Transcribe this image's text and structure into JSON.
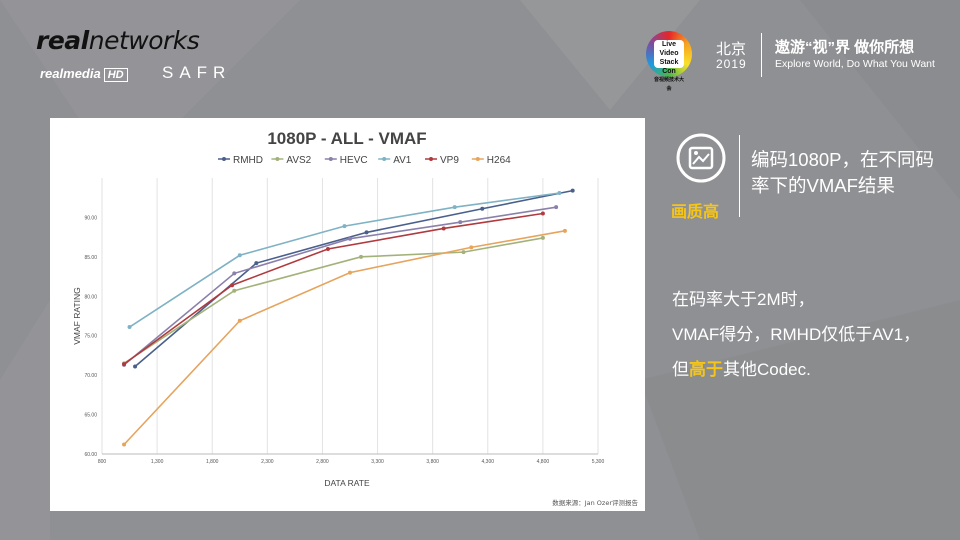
{
  "header": {
    "brand_left": {
      "real": "real",
      "networks": "networks",
      "realmedia": "realmedia",
      "hd": "HD",
      "safr": "SAFR"
    },
    "event": {
      "logo_text": [
        "Live Video",
        "Stack Con",
        "音视频技术大会"
      ],
      "city": "北京",
      "year": "2019",
      "slogan_cn": "遨游“视”界  做你所想",
      "slogan_en": "Explore World, Do What You Want"
    }
  },
  "callout": {
    "icon": "picture-quality-icon",
    "caption": "画质高",
    "title": "编码1080P，在不同码率下的VMAF结果"
  },
  "body": {
    "line1": "在码率大于2M时，",
    "line2": "VMAF得分，RMHD仅低于AV1，",
    "line3_pre": "但",
    "line3_hl": "高于",
    "line3_post": "其他Codec."
  },
  "colors": {
    "background": "#8f9093",
    "accent": "#f5c518"
  },
  "chart_data": {
    "type": "line",
    "title": "1080P - ALL - VMAF",
    "xlabel": "DATA RATE",
    "ylabel": "VMAF RATING",
    "source": "数据来源：Jan Ozer评测报告",
    "xlim": [
      800,
      5300
    ],
    "ylim": [
      60,
      95
    ],
    "xticks": [
      "800",
      "1,300",
      "1,800",
      "2,300",
      "2,800",
      "3,300",
      "3,800",
      "4,300",
      "4,800",
      "5,300"
    ],
    "yticks": [
      "60.00",
      "65.00",
      "70.00",
      "75.00",
      "80.00",
      "85.00",
      "90.00"
    ],
    "legend_position": "top",
    "series": [
      {
        "name": "RMHD",
        "color": "#4a5f8c",
        "points": [
          [
            1100,
            71.1
          ],
          [
            2200,
            84.2
          ],
          [
            3200,
            88.1
          ],
          [
            4250,
            91.1
          ],
          [
            5070,
            93.4
          ]
        ]
      },
      {
        "name": "AVS2",
        "color": "#a3b27a",
        "points": [
          [
            1000,
            71.5
          ],
          [
            2000,
            80.7
          ],
          [
            3150,
            85.0
          ],
          [
            4080,
            85.6
          ],
          [
            4800,
            87.4
          ]
        ]
      },
      {
        "name": "HEVC",
        "color": "#8a80ab",
        "points": [
          [
            1000,
            71.3
          ],
          [
            2000,
            82.9
          ],
          [
            3050,
            87.3
          ],
          [
            4050,
            89.4
          ],
          [
            4920,
            91.3
          ]
        ]
      },
      {
        "name": "AV1",
        "color": "#7fb2c4",
        "points": [
          [
            1050,
            76.1
          ],
          [
            2050,
            85.2
          ],
          [
            3000,
            88.9
          ],
          [
            4000,
            91.3
          ],
          [
            4950,
            93.1
          ]
        ]
      },
      {
        "name": "VP9",
        "color": "#b03a3e",
        "points": [
          [
            1000,
            71.4
          ],
          [
            1980,
            81.4
          ],
          [
            2850,
            86.0
          ],
          [
            3900,
            88.6
          ],
          [
            4800,
            90.5
          ]
        ]
      },
      {
        "name": "H264",
        "color": "#e6a45d",
        "points": [
          [
            1000,
            61.2
          ],
          [
            2050,
            76.9
          ],
          [
            3050,
            83.0
          ],
          [
            4150,
            86.2
          ],
          [
            5000,
            88.3
          ]
        ]
      }
    ]
  }
}
